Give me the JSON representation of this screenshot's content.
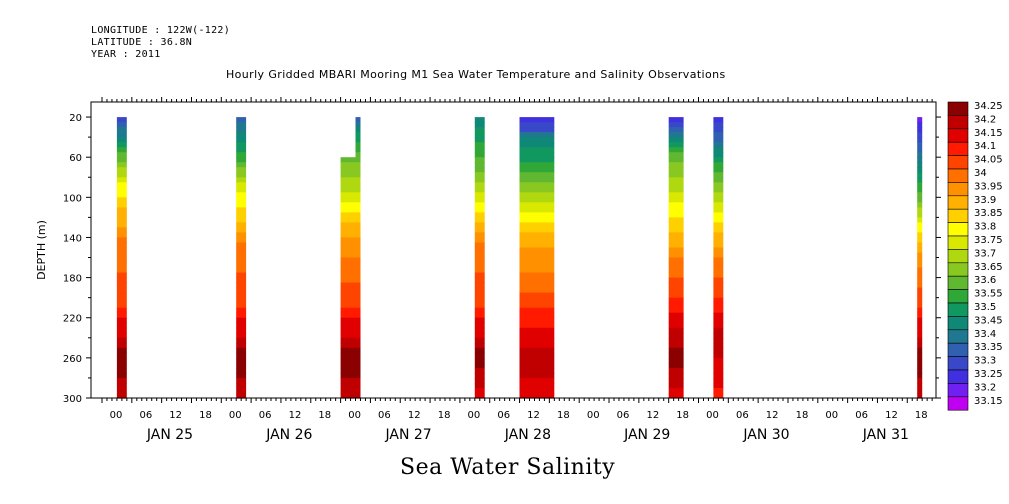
{
  "header": {
    "longitude": "LONGITUDE : 122W(-122)",
    "latitude": "LATITUDE : 36.8N",
    "year": "YEAR : 2011"
  },
  "chart_title": "Hourly Gridded MBARI Mooring M1 Sea Water Temperature and Salinity Observations",
  "bottom_title": "Sea Water Salinity",
  "chart_data": {
    "type": "heatmap",
    "title": "Hourly Gridded MBARI Mooring M1 Sea Water Temperature and Salinity Observations",
    "subtitle": "Sea Water Salinity",
    "xlabel": "",
    "ylabel": "DEPTH (m)",
    "y_axis": {
      "range": [
        300,
        5
      ],
      "inverted": true,
      "ticks": [
        20,
        60,
        100,
        140,
        180,
        220,
        260,
        300
      ]
    },
    "x_axis": {
      "hour_ticks": [
        "00",
        "06",
        "12",
        "18",
        "00",
        "06",
        "12",
        "18",
        "00",
        "06",
        "12",
        "18",
        "00",
        "06",
        "12",
        "18",
        "00",
        "06",
        "12",
        "18",
        "00",
        "06",
        "12",
        "18",
        "00",
        "06",
        "12",
        "18"
      ],
      "day_labels": [
        "JAN 25",
        "JAN 26",
        "JAN 27",
        "JAN 28",
        "JAN 29",
        "JAN 30",
        "JAN 31"
      ]
    },
    "colorbar": {
      "levels": [
        "34.25",
        "34.2",
        "34.15",
        "34.1",
        "34.05",
        "34",
        "33.95",
        "33.9",
        "33.85",
        "33.8",
        "33.75",
        "33.7",
        "33.65",
        "33.6",
        "33.55",
        "33.5",
        "33.45",
        "33.4",
        "33.35",
        "33.3",
        "33.25",
        "33.2",
        "33.15"
      ],
      "colors": [
        "#8b0000",
        "#c00000",
        "#e00000",
        "#ff1a00",
        "#ff4400",
        "#ff7000",
        "#ff9000",
        "#ffb000",
        "#ffd000",
        "#ffff00",
        "#d8e800",
        "#b0d810",
        "#88c820",
        "#60b830",
        "#30a838",
        "#109860",
        "#108878",
        "#207890",
        "#3060b0",
        "#3848c8",
        "#4030e0",
        "#7020f0",
        "#c000f0"
      ]
    },
    "data_segments": [
      {
        "day": "JAN 25",
        "hour_start": 3,
        "hour_end": 5,
        "depth_top": 20,
        "depth_bottom": 300,
        "profile": [
          [
            20,
            33.3
          ],
          [
            35,
            33.4
          ],
          [
            60,
            33.6
          ],
          [
            90,
            33.8
          ],
          [
            120,
            33.9
          ],
          [
            150,
            34.0
          ],
          [
            200,
            34.05
          ],
          [
            230,
            34.15
          ],
          [
            260,
            34.25
          ],
          [
            300,
            34.2
          ]
        ]
      },
      {
        "day": "JAN 26",
        "hour_start": 3,
        "hour_end": 5,
        "depth_top": 20,
        "depth_bottom": 300,
        "profile": [
          [
            20,
            33.35
          ],
          [
            40,
            33.45
          ],
          [
            60,
            33.55
          ],
          [
            90,
            33.75
          ],
          [
            120,
            33.85
          ],
          [
            150,
            34.0
          ],
          [
            200,
            34.05
          ],
          [
            230,
            34.15
          ],
          [
            260,
            34.25
          ],
          [
            300,
            34.2
          ]
        ]
      },
      {
        "day": "JAN 27",
        "hour_start": 0,
        "hour_end": 3,
        "depth_top": 60,
        "depth_bottom": 300,
        "profile": [
          [
            60,
            33.6
          ],
          [
            90,
            33.7
          ],
          [
            120,
            33.85
          ],
          [
            150,
            33.95
          ],
          [
            200,
            34.05
          ],
          [
            230,
            34.15
          ],
          [
            260,
            34.25
          ],
          [
            300,
            34.2
          ]
        ]
      },
      {
        "day": "JAN 27",
        "hour_start": 3,
        "hour_end": 4,
        "depth_top": 20,
        "depth_bottom": 300,
        "profile": [
          [
            20,
            33.35
          ],
          [
            40,
            33.5
          ],
          [
            60,
            33.6
          ],
          [
            90,
            33.7
          ],
          [
            120,
            33.85
          ],
          [
            150,
            33.95
          ],
          [
            200,
            34.05
          ],
          [
            230,
            34.15
          ],
          [
            260,
            34.25
          ],
          [
            300,
            34.2
          ]
        ]
      },
      {
        "day": "JAN 28",
        "hour_start": 3,
        "hour_end": 5,
        "depth_top": 20,
        "depth_bottom": 300,
        "profile": [
          [
            20,
            33.45
          ],
          [
            40,
            33.5
          ],
          [
            70,
            33.6
          ],
          [
            100,
            33.75
          ],
          [
            130,
            33.9
          ],
          [
            150,
            34.0
          ],
          [
            200,
            34.05
          ],
          [
            230,
            34.15
          ],
          [
            260,
            34.25
          ],
          [
            300,
            34.15
          ]
        ]
      },
      {
        "day": "JAN 28",
        "hour_start": 12,
        "hour_end": 19,
        "depth_top": 20,
        "depth_bottom": 300,
        "profile": [
          [
            20,
            33.2
          ],
          [
            30,
            33.3
          ],
          [
            45,
            33.45
          ],
          [
            70,
            33.55
          ],
          [
            100,
            33.7
          ],
          [
            130,
            33.85
          ],
          [
            160,
            33.95
          ],
          [
            190,
            34.0
          ],
          [
            220,
            34.1
          ],
          [
            260,
            34.2
          ],
          [
            300,
            34.15
          ]
        ]
      },
      {
        "day": "JAN 29",
        "hour_start": 18,
        "hour_end": 21,
        "depth_top": 20,
        "depth_bottom": 300,
        "profile": [
          [
            20,
            33.25
          ],
          [
            35,
            33.35
          ],
          [
            60,
            33.6
          ],
          [
            100,
            33.75
          ],
          [
            140,
            33.9
          ],
          [
            170,
            34.0
          ],
          [
            210,
            34.1
          ],
          [
            240,
            34.2
          ],
          [
            260,
            34.25
          ],
          [
            300,
            34.15
          ]
        ]
      },
      {
        "day": "JAN 30",
        "hour_start": 3,
        "hour_end": 5,
        "depth_top": 20,
        "depth_bottom": 300,
        "profile": [
          [
            20,
            33.25
          ],
          [
            40,
            33.35
          ],
          [
            70,
            33.55
          ],
          [
            100,
            33.7
          ],
          [
            140,
            33.9
          ],
          [
            170,
            34.0
          ],
          [
            210,
            34.1
          ],
          [
            240,
            34.2
          ],
          [
            280,
            34.15
          ],
          [
            300,
            34.1
          ]
        ]
      },
      {
        "day": "JAN 31",
        "hour_start": 20,
        "hour_end": 21,
        "depth_top": 20,
        "depth_bottom": 300,
        "profile": [
          [
            20,
            33.2
          ],
          [
            40,
            33.3
          ],
          [
            70,
            33.45
          ],
          [
            100,
            33.6
          ],
          [
            130,
            33.8
          ],
          [
            160,
            33.95
          ],
          [
            200,
            34.05
          ],
          [
            230,
            34.15
          ],
          [
            260,
            34.25
          ],
          [
            300,
            34.2
          ]
        ]
      }
    ]
  }
}
